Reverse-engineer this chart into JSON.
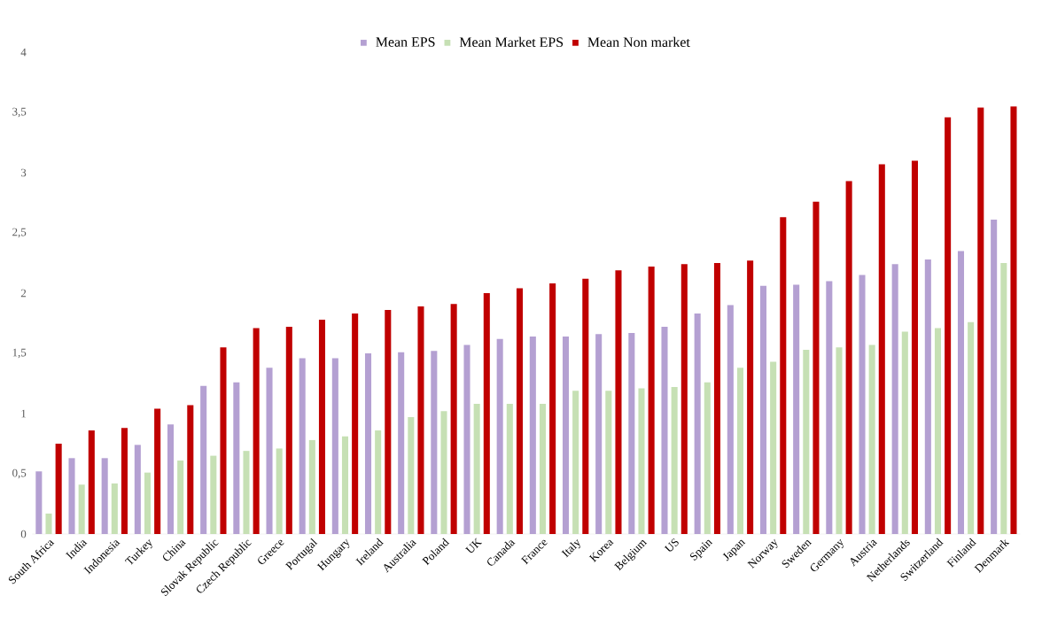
{
  "chart_data": {
    "type": "bar",
    "categories": [
      "South Africa",
      "India",
      "Indonesia",
      "Turkey",
      "China",
      "Slovak Republic",
      "Czech Republic",
      "Greece",
      "Portugal",
      "Hungary",
      "Ireland",
      "Australia",
      "Poland",
      "UK",
      "Canada",
      "France",
      "Italy",
      "Korea",
      "Belgium",
      "US",
      "Spain",
      "Japan",
      "Norway",
      "Sweden",
      "Germany",
      "Austria",
      "Netherlands",
      "Switzerland",
      "Finland",
      "Denmark"
    ],
    "series": [
      {
        "name": "Mean EPS",
        "color": "#b4a0d2",
        "values": [
          0.52,
          0.63,
          0.63,
          0.74,
          0.91,
          1.23,
          1.26,
          1.38,
          1.46,
          1.46,
          1.5,
          1.51,
          1.52,
          1.57,
          1.62,
          1.64,
          1.64,
          1.66,
          1.67,
          1.72,
          1.83,
          1.9,
          2.06,
          2.07,
          2.1,
          2.15,
          2.24,
          2.28,
          2.35,
          2.61
        ]
      },
      {
        "name": "Mean Market EPS",
        "color": "#c6e0b4",
        "values": [
          0.17,
          0.41,
          0.42,
          0.51,
          0.61,
          0.65,
          0.69,
          0.71,
          0.78,
          0.81,
          0.86,
          0.97,
          1.02,
          1.08,
          1.08,
          1.08,
          1.19,
          1.19,
          1.21,
          1.22,
          1.26,
          1.38,
          1.43,
          1.53,
          1.55,
          1.57,
          1.68,
          1.71,
          1.76,
          2.25
        ]
      },
      {
        "name": "Mean Non market",
        "color": "#c00000",
        "values": [
          0.75,
          0.86,
          0.88,
          1.04,
          1.07,
          1.55,
          1.71,
          1.72,
          1.78,
          1.83,
          1.86,
          1.89,
          1.91,
          2.0,
          2.04,
          2.08,
          2.12,
          2.19,
          2.22,
          2.24,
          2.25,
          2.27,
          2.63,
          2.76,
          2.93,
          3.07,
          3.1,
          3.46,
          3.54,
          3.55
        ]
      }
    ],
    "ylim": [
      0,
      4
    ],
    "yticks": [
      0,
      {
        "value": 0.5,
        "label": "0,5"
      },
      1,
      {
        "value": 1.5,
        "label": "1,5"
      },
      2,
      {
        "value": 2.5,
        "label": "2,5"
      },
      3,
      {
        "value": 3.5,
        "label": "3,5"
      },
      4
    ],
    "legend": "top"
  }
}
